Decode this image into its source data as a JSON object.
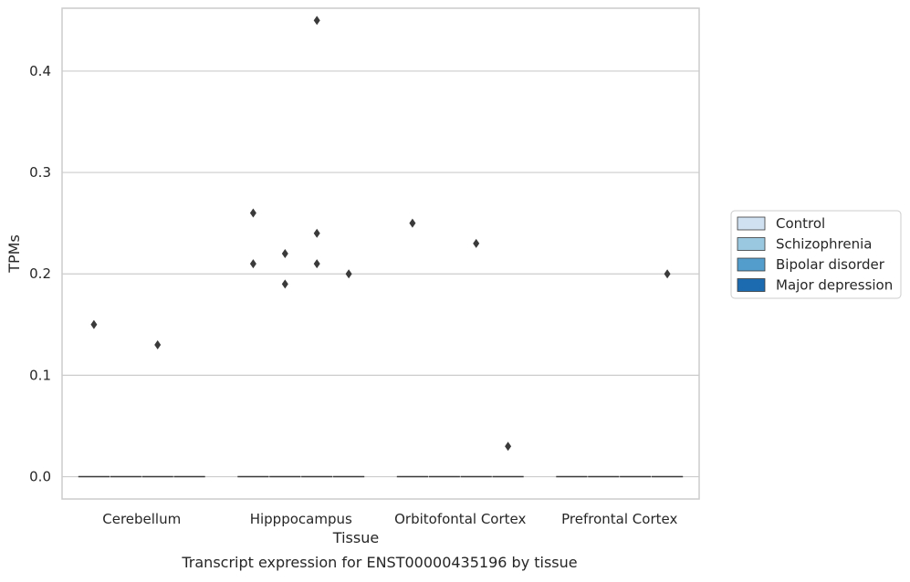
{
  "chart_data": {
    "type": "box",
    "title": "",
    "caption": "Transcript expression for ENST00000435196 by tissue",
    "xlabel": "Tissue",
    "ylabel": "TPMs",
    "ylim": [
      -0.022,
      0.462
    ],
    "yticks": [
      0.0,
      0.1,
      0.2,
      0.3,
      0.4
    ],
    "ytick_labels": [
      "0.0",
      "0.1",
      "0.2",
      "0.3",
      "0.4"
    ],
    "grid": "horizontal",
    "legend_position": "right",
    "categories": [
      "Cerebellum",
      "Hipppocampus",
      "Orbitofontal Cortex",
      "Prefrontal Cortex"
    ],
    "series": [
      {
        "name": "Control",
        "color": "#d0e2f2",
        "boxes": [
          {
            "q1": 0,
            "median": 0,
            "q3": 0,
            "whisker_low": 0,
            "whisker_high": 0
          },
          {
            "q1": 0,
            "median": 0,
            "q3": 0,
            "whisker_low": 0,
            "whisker_high": 0
          },
          {
            "q1": 0,
            "median": 0,
            "q3": 0,
            "whisker_low": 0,
            "whisker_high": 0
          },
          {
            "q1": 0,
            "median": 0,
            "q3": 0,
            "whisker_low": 0,
            "whisker_high": 0
          }
        ],
        "outliers": [
          [
            0.15
          ],
          [
            0.26,
            0.21
          ],
          [
            0.25
          ],
          []
        ]
      },
      {
        "name": "Schizophrenia",
        "color": "#9ac8e0",
        "boxes": [
          {
            "q1": 0,
            "median": 0,
            "q3": 0,
            "whisker_low": 0,
            "whisker_high": 0
          },
          {
            "q1": 0,
            "median": 0,
            "q3": 0,
            "whisker_low": 0,
            "whisker_high": 0
          },
          {
            "q1": 0,
            "median": 0,
            "q3": 0,
            "whisker_low": 0,
            "whisker_high": 0
          },
          {
            "q1": 0,
            "median": 0,
            "q3": 0,
            "whisker_low": 0,
            "whisker_high": 0
          }
        ],
        "outliers": [
          [],
          [
            0.22,
            0.19
          ],
          [],
          []
        ]
      },
      {
        "name": "Bipolar disorder",
        "color": "#529dcc",
        "boxes": [
          {
            "q1": 0,
            "median": 0,
            "q3": 0,
            "whisker_low": 0,
            "whisker_high": 0
          },
          {
            "q1": 0,
            "median": 0,
            "q3": 0,
            "whisker_low": 0,
            "whisker_high": 0
          },
          {
            "q1": 0,
            "median": 0,
            "q3": 0,
            "whisker_low": 0,
            "whisker_high": 0
          },
          {
            "q1": 0,
            "median": 0,
            "q3": 0,
            "whisker_low": 0,
            "whisker_high": 0
          }
        ],
        "outliers": [
          [
            0.13
          ],
          [
            0.45,
            0.24,
            0.21
          ],
          [
            0.23
          ],
          []
        ]
      },
      {
        "name": "Major depression",
        "color": "#1c6aaf",
        "boxes": [
          {
            "q1": 0,
            "median": 0,
            "q3": 0,
            "whisker_low": 0,
            "whisker_high": 0
          },
          {
            "q1": 0,
            "median": 0,
            "q3": 0,
            "whisker_low": 0,
            "whisker_high": 0
          },
          {
            "q1": 0,
            "median": 0,
            "q3": 0,
            "whisker_low": 0,
            "whisker_high": 0
          },
          {
            "q1": 0,
            "median": 0,
            "q3": 0,
            "whisker_low": 0,
            "whisker_high": 0
          }
        ],
        "outliers": [
          [],
          [
            0.2
          ],
          [
            0.03
          ],
          [
            0.2
          ]
        ]
      }
    ],
    "colors": {
      "grid": "#cccccc",
      "spine": "#cccccc",
      "marker": "#3a3a3a",
      "line": "#3a3a3a",
      "text": "#262626"
    }
  }
}
